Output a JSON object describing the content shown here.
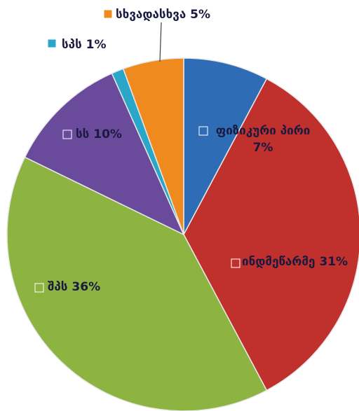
{
  "chart_data": {
    "type": "pie",
    "categories": [
      "ფიზიკური პირი",
      "ინდმეწარმე",
      "შპს",
      "სს",
      "სპს",
      "სხვადასხვა"
    ],
    "values": [
      7,
      31,
      36,
      10,
      1,
      5
    ],
    "value_labels": [
      "7%",
      "31%",
      "36%",
      "10%",
      "1%",
      "5%"
    ],
    "colors": [
      "#2e6db5",
      "#c0302c",
      "#8db340",
      "#6a4a9a",
      "#2aa7c8",
      "#ef8a1e"
    ]
  }
}
